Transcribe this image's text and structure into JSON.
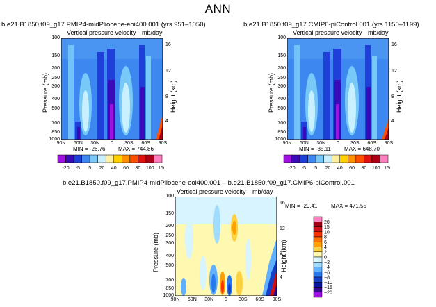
{
  "title": "ANN",
  "panels": [
    {
      "title": "b.e21.B1850.f09_g17.PMIP4-midPliocene-eoi400.001  (yrs 951–1050)",
      "subtitle_left": "Vertical pressure velocity",
      "subtitle_right": "mb/day",
      "min_label": "MIN = -26.76",
      "max_label": "MAX = 744.86"
    },
    {
      "title": "b.e21.B1850.f09_g17.CMIP6-piControl.001  (yrs 1150–1199)",
      "subtitle_left": "Vertical pressure velocity",
      "subtitle_right": "mb/day",
      "min_label": "MIN = -35.11",
      "max_label": "MAX = 648.70"
    },
    {
      "title": "b.e21.B1850.f09_g17.PMIP4-midPliocene-eoi400.001  –  b.e21.B1850.f09_g17.CMIP6-piControl.001",
      "subtitle_left": "Vertical pressure velocity",
      "subtitle_right": "mb/day",
      "min_label": "MIN = -29.41",
      "max_label": "MAX = 471.55"
    }
  ],
  "axes": {
    "ylabel": "Pressure (mb)",
    "ylabel_right": "Height (km)",
    "pressure_ticks": [
      "100",
      "150",
      "200",
      "250",
      "300",
      "400",
      "500",
      "700",
      "850",
      "1000"
    ],
    "height_ticks": [
      "16",
      "12",
      "8",
      "4"
    ],
    "lat_ticks": [
      "90N",
      "60N",
      "30N",
      "0",
      "30S",
      "60S",
      "90S"
    ]
  },
  "colorbar_abs": {
    "levels": [
      "-20",
      "-5",
      "5",
      "20",
      "40",
      "60",
      "80",
      "100",
      "150"
    ],
    "colors": [
      "#a010e0",
      "#3a0ab8",
      "#1e40d8",
      "#3c88f0",
      "#78c8f8",
      "#c8f0ff",
      "#fff0a0",
      "#ffd000",
      "#ff9000",
      "#ff5000",
      "#e01010",
      "#b00018",
      "#ff80c0"
    ]
  },
  "colorbar_diff": {
    "levels": [
      "20",
      "15",
      "10",
      "8",
      "6",
      "4",
      "2",
      "0",
      "−2",
      "−4",
      "−6",
      "−8",
      "−10",
      "−15",
      "−20"
    ],
    "colors": [
      "#ff80c0",
      "#a00018",
      "#d01010",
      "#ff3000",
      "#ff7000",
      "#ffa000",
      "#ffd040",
      "#fff8b0",
      "#d8f4ff",
      "#a0dcff",
      "#60b0ff",
      "#2878f0",
      "#1440c8",
      "#0818a0",
      "#3a0890",
      "#a010e0"
    ]
  },
  "chart_data": [
    {
      "type": "heatmap",
      "title": "b.e21.B1850.f09_g17.PMIP4-midPliocene-eoi400.001  (yrs 951–1050)",
      "variable": "Vertical pressure velocity",
      "units": "mb/day",
      "xlabel": "",
      "ylabel": "Pressure (mb)",
      "ylabel_right": "Height (km)",
      "x_ticks": [
        "90N",
        "60N",
        "30N",
        "0",
        "30S",
        "60S",
        "90S"
      ],
      "y_range_mb": [
        100,
        1000
      ],
      "y_scale": "log",
      "min": -26.76,
      "max": 744.86,
      "contour_levels": [
        -20,
        -10,
        -5,
        0,
        5,
        10,
        20,
        40,
        60,
        80,
        100,
        150
      ]
    },
    {
      "type": "heatmap",
      "title": "b.e21.B1850.f09_g17.CMIP6-piControl.001  (yrs 1150–1199)",
      "variable": "Vertical pressure velocity",
      "units": "mb/day",
      "xlabel": "",
      "ylabel": "Pressure (mb)",
      "ylabel_right": "Height (km)",
      "x_ticks": [
        "90N",
        "60N",
        "30N",
        "0",
        "30S",
        "60S",
        "90S"
      ],
      "y_range_mb": [
        100,
        1000
      ],
      "y_scale": "log",
      "min": -35.11,
      "max": 648.7,
      "contour_levels": [
        -20,
        -10,
        -5,
        0,
        5,
        10,
        20,
        40,
        60,
        80,
        100,
        150
      ]
    },
    {
      "type": "heatmap",
      "title": "b.e21.B1850.f09_g17.PMIP4-midPliocene-eoi400.001  –  b.e21.B1850.f09_g17.CMIP6-piControl.001",
      "variable": "Vertical pressure velocity",
      "units": "mb/day",
      "xlabel": "",
      "ylabel": "Pressure (mb)",
      "ylabel_right": "Height (km)",
      "x_ticks": [
        "90N",
        "60N",
        "30N",
        "0",
        "30S",
        "60S",
        "90S"
      ],
      "y_range_mb": [
        100,
        1000
      ],
      "y_scale": "log",
      "min": -29.41,
      "max": 471.55,
      "contour_levels": [
        -20,
        -15,
        -10,
        -8,
        -6,
        -4,
        -2,
        0,
        2,
        4,
        6,
        8,
        10,
        15,
        20
      ]
    }
  ]
}
